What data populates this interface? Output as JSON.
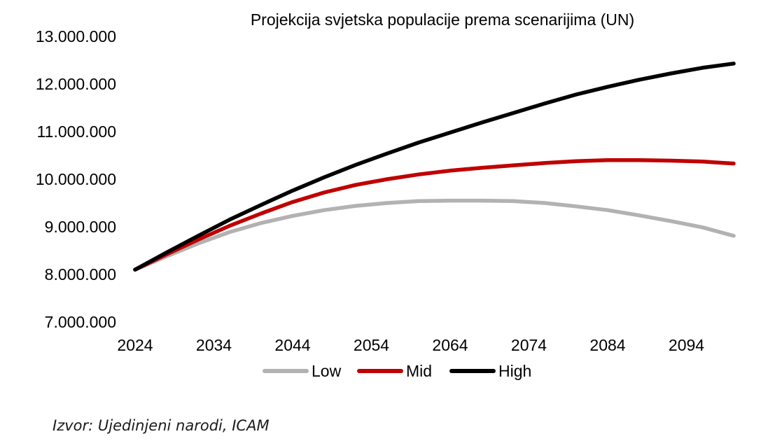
{
  "source_note": "Izvor: Ujedinjeni narodi, ICAM",
  "chart_data": {
    "type": "line",
    "title": "Projekcija svjetska populacije prema scenarijima (UN)",
    "xlabel": "",
    "ylabel": "",
    "xlim": [
      2024,
      2100
    ],
    "ylim": [
      7000000,
      13000000
    ],
    "x_ticks": [
      "2024",
      "2034",
      "2044",
      "2054",
      "2064",
      "2074",
      "2084",
      "2094"
    ],
    "y_ticks": [
      "7.000.000",
      "8.000.000",
      "9.000.000",
      "10.000.000",
      "11.000.000",
      "12.000.000",
      "13.000.000"
    ],
    "legend_position": "bottom",
    "x": [
      2024,
      2028,
      2032,
      2036,
      2040,
      2044,
      2048,
      2052,
      2056,
      2060,
      2064,
      2068,
      2072,
      2076,
      2080,
      2084,
      2088,
      2092,
      2096,
      2100
    ],
    "series": [
      {
        "name": "Low",
        "color": "#b3b1b2",
        "values": [
          8100000,
          8380000,
          8650000,
          8890000,
          9080000,
          9230000,
          9350000,
          9440000,
          9500000,
          9540000,
          9550000,
          9550000,
          9540000,
          9500000,
          9430000,
          9350000,
          9240000,
          9120000,
          8990000,
          8810000
        ]
      },
      {
        "name": "Mid",
        "color": "#c00000",
        "values": [
          8100000,
          8420000,
          8730000,
          9020000,
          9280000,
          9520000,
          9720000,
          9880000,
          10000000,
          10100000,
          10180000,
          10240000,
          10290000,
          10340000,
          10380000,
          10400000,
          10400000,
          10390000,
          10370000,
          10330000
        ]
      },
      {
        "name": "High",
        "color": "#000000",
        "values": [
          8100000,
          8460000,
          8810000,
          9150000,
          9460000,
          9760000,
          10040000,
          10300000,
          10540000,
          10770000,
          10980000,
          11190000,
          11390000,
          11590000,
          11780000,
          11940000,
          12090000,
          12220000,
          12340000,
          12430000
        ]
      }
    ]
  }
}
